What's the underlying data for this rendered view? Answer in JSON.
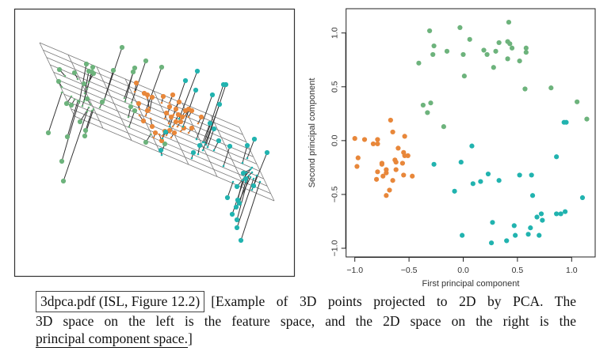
{
  "figure": {
    "left_panel": {
      "description": "3D feature space with fitted principal component plane and projection lines",
      "group_counts": {
        "green": 30,
        "orange": 30,
        "teal": 30
      }
    },
    "caption": {
      "reference": "3dpca.pdf (ISL, Figure 12.2)",
      "line1": "[Example of 3D points projected to 2D by PCA. The",
      "line2": "3D space on the left is the feature space, and the 2D space on the right is the",
      "line3_underlined": "principal component space.",
      "line3_tail": "]"
    }
  },
  "colors": {
    "green": "#6DB37C",
    "orange": "#E8873A",
    "teal": "#21B3AF",
    "axis": "#222222",
    "grid": "#777777"
  },
  "chart_data": {
    "type": "scatter",
    "title": "",
    "xlabel": "First principal component",
    "ylabel": "Second principal component",
    "xlim": [
      -1.08,
      1.22
    ],
    "ylim": [
      -1.08,
      1.22
    ],
    "xticks": [
      -1.0,
      -0.5,
      0.0,
      0.5,
      1.0
    ],
    "yticks": [
      -1.0,
      -0.5,
      0.0,
      0.5,
      1.0
    ],
    "xtick_labels": [
      "−1.0",
      "−0.5",
      "0.0",
      "0.5",
      "1.0"
    ],
    "ytick_labels": [
      "−1.0",
      "−0.5",
      "0.0",
      "0.5",
      "1.0"
    ],
    "grid": false,
    "legend": "none",
    "series": [
      {
        "name": "orange",
        "color": "#E8873A",
        "points": [
          [
            -0.67,
            0.19
          ],
          [
            -0.65,
            0.08
          ],
          [
            -1.0,
            0.02
          ],
          [
            -0.91,
            0.01
          ],
          [
            -0.79,
            0.01
          ],
          [
            -0.83,
            -0.03
          ],
          [
            -0.79,
            -0.03
          ],
          [
            -0.54,
            0.04
          ],
          [
            -0.97,
            -0.16
          ],
          [
            -0.98,
            -0.24
          ],
          [
            -0.6,
            -0.07
          ],
          [
            -0.55,
            -0.11
          ],
          [
            -0.54,
            -0.14
          ],
          [
            -0.51,
            -0.14
          ],
          [
            -0.63,
            -0.18
          ],
          [
            -0.62,
            -0.2
          ],
          [
            -0.56,
            -0.21
          ],
          [
            -0.75,
            -0.21
          ],
          [
            -0.75,
            -0.22
          ],
          [
            -0.62,
            -0.27
          ],
          [
            -0.71,
            -0.27
          ],
          [
            -0.71,
            -0.3
          ],
          [
            -0.79,
            -0.29
          ],
          [
            -0.74,
            -0.33
          ],
          [
            -0.55,
            -0.32
          ],
          [
            -0.47,
            -0.33
          ],
          [
            -0.8,
            -0.36
          ],
          [
            -0.65,
            -0.37
          ],
          [
            -0.68,
            -0.46
          ],
          [
            -0.71,
            -0.51
          ]
        ]
      },
      {
        "name": "green",
        "color": "#6DB37C",
        "points": [
          [
            -0.31,
            1.02
          ],
          [
            -0.03,
            1.05
          ],
          [
            0.42,
            1.1
          ],
          [
            0.06,
            0.94
          ],
          [
            -0.27,
            0.88
          ],
          [
            -0.28,
            0.8
          ],
          [
            -0.15,
            0.83
          ],
          [
            0.0,
            0.8
          ],
          [
            -0.41,
            0.72
          ],
          [
            0.19,
            0.84
          ],
          [
            0.22,
            0.8
          ],
          [
            0.33,
            0.91
          ],
          [
            0.3,
            0.83
          ],
          [
            0.41,
            0.92
          ],
          [
            0.43,
            0.9
          ],
          [
            0.45,
            0.86
          ],
          [
            0.41,
            0.76
          ],
          [
            0.28,
            0.68
          ],
          [
            0.01,
            0.6
          ],
          [
            0.58,
            0.86
          ],
          [
            0.58,
            0.82
          ],
          [
            0.52,
            0.74
          ],
          [
            0.57,
            0.48
          ],
          [
            0.81,
            0.49
          ],
          [
            1.05,
            0.36
          ],
          [
            1.14,
            0.2
          ],
          [
            -0.37,
            0.33
          ],
          [
            -0.3,
            0.35
          ],
          [
            -0.33,
            0.26
          ],
          [
            -0.18,
            0.13
          ]
        ]
      },
      {
        "name": "teal",
        "color": "#21B3AF",
        "points": [
          [
            0.93,
            0.17
          ],
          [
            0.95,
            0.17
          ],
          [
            0.08,
            -0.05
          ],
          [
            -0.02,
            -0.2
          ],
          [
            -0.27,
            -0.22
          ],
          [
            0.23,
            -0.31
          ],
          [
            0.09,
            -0.4
          ],
          [
            0.16,
            -0.38
          ],
          [
            0.33,
            -0.37
          ],
          [
            -0.08,
            -0.47
          ],
          [
            0.52,
            -0.32
          ],
          [
            0.63,
            -0.32
          ],
          [
            0.64,
            -0.51
          ],
          [
            0.27,
            -0.76
          ],
          [
            0.47,
            -0.79
          ],
          [
            0.62,
            -0.81
          ],
          [
            0.68,
            -0.71
          ],
          [
            0.72,
            -0.68
          ],
          [
            0.73,
            -0.74
          ],
          [
            -0.01,
            -0.88
          ],
          [
            0.26,
            -0.95
          ],
          [
            0.4,
            -0.93
          ],
          [
            0.48,
            -0.88
          ],
          [
            0.6,
            -0.87
          ],
          [
            0.7,
            -0.88
          ],
          [
            0.86,
            -0.15
          ],
          [
            1.1,
            -0.53
          ],
          [
            0.86,
            -0.68
          ],
          [
            0.9,
            -0.68
          ],
          [
            0.94,
            -0.66
          ]
        ]
      }
    ]
  }
}
